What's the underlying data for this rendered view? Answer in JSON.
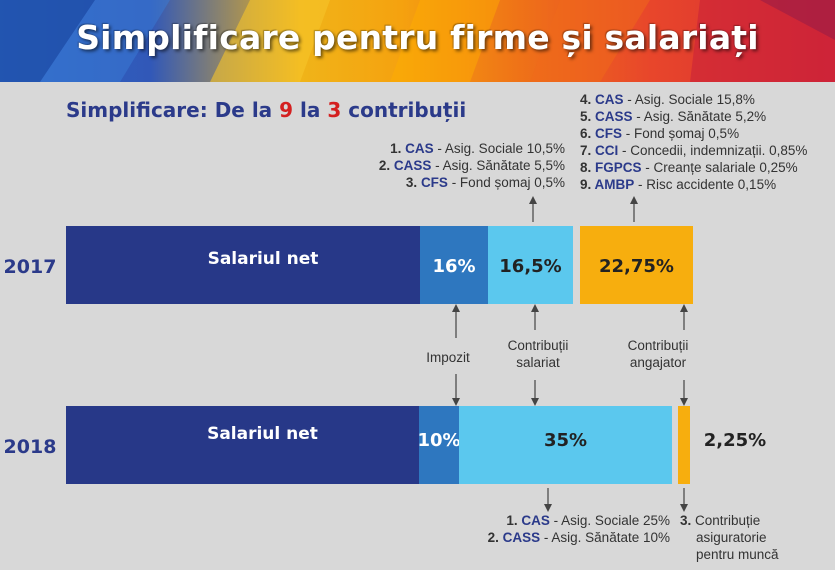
{
  "banner": {
    "title": "Simplificare pentru firme și salariați"
  },
  "subtitle": {
    "prefix": "Simplificare: De la ",
    "from": "9",
    "middle": " la ",
    "to": "3",
    "suffix": " contribuții"
  },
  "colors": {
    "salary": "#273888",
    "tax": "#2e77bf",
    "employee": "#5bc8ee",
    "employer": "#f7ae0e",
    "text_dark": "#2b3a8a",
    "highlight": "#d42020"
  },
  "chart_data": {
    "type": "bar",
    "orientation": "horizontal",
    "stacked": true,
    "rows": [
      {
        "year": "2017",
        "segments": [
          {
            "key": "salary",
            "label": "Salariul net"
          },
          {
            "key": "tax",
            "label": "16%",
            "value": 16
          },
          {
            "key": "employee",
            "label": "16,5%",
            "value": 16.5
          },
          {
            "key": "employer",
            "label": "22,75%",
            "value": 22.75
          }
        ]
      },
      {
        "year": "2018",
        "segments": [
          {
            "key": "salary",
            "label": "Salariul net"
          },
          {
            "key": "tax",
            "label": "10%",
            "value": 10
          },
          {
            "key": "employee",
            "label": "35%",
            "value": 35
          },
          {
            "key": "employer",
            "label": "2,25%",
            "value": 2.25
          }
        ]
      }
    ],
    "categories_labels": {
      "tax": "Impozit",
      "employee": [
        "Contribuții",
        "salariat"
      ],
      "employer": [
        "Contribuții",
        "angajator"
      ]
    },
    "notes_2017_employee": [
      {
        "num": "1.",
        "hl": "CAS",
        "text": " - Asig. Sociale 10,5%"
      },
      {
        "num": "2.",
        "hl": "CASS",
        "text": " - Asig. Sănătate 5,5%"
      },
      {
        "num": "3.",
        "hl": "CFS",
        "text": " - Fond șomaj 0,5%"
      }
    ],
    "notes_2017_employer": [
      {
        "num": "4.",
        "hl": "CAS",
        "text": " - Asig. Sociale 15,8%"
      },
      {
        "num": "5.",
        "hl": "CASS",
        "text": " - Asig. Sănătate 5,2%"
      },
      {
        "num": "6.",
        "hl": "CFS",
        "text": " - Fond șomaj 0,5%"
      },
      {
        "num": "7.",
        "hl": "CCI",
        "text": " - Concedii, indemnizații. 0,85%"
      },
      {
        "num": "8.",
        "hl": "FGPCS",
        "text": " - Creanțe salariale 0,25%"
      },
      {
        "num": "9.",
        "hl": "AMBP",
        "text": " - Risc accidente 0,15%"
      }
    ],
    "notes_2018_employee": [
      {
        "num": "1.",
        "hl": "CAS",
        "text": " - Asig. Sociale 25%"
      },
      {
        "num": "2.",
        "hl": "CASS",
        "text": " - Asig. Sănătate 10%"
      }
    ],
    "notes_2018_employer": {
      "num": "3.",
      "lines": [
        "Contribuție",
        "asiguratorie",
        "pentru muncă"
      ]
    }
  }
}
